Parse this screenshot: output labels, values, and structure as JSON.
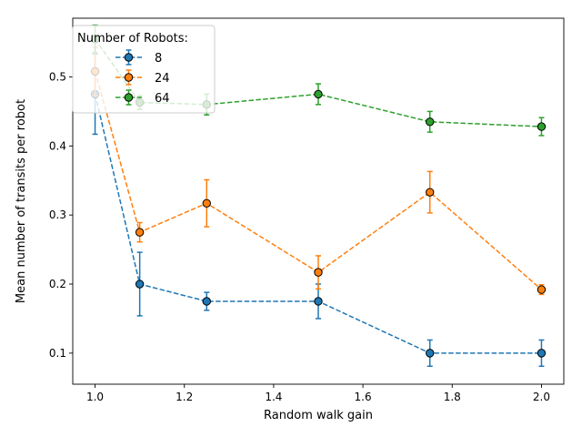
{
  "chart_data": {
    "type": "line",
    "xlabel": "Random walk gain",
    "ylabel": "Mean number of transits per robot",
    "xlim": [
      0.95,
      2.05
    ],
    "ylim": [
      0.055,
      0.585
    ],
    "x_ticks": [
      1.0,
      1.2,
      1.4,
      1.6,
      1.8,
      2.0
    ],
    "x_tick_labels": [
      "1.0",
      "1.2",
      "1.4",
      "1.6",
      "1.8",
      "2.0"
    ],
    "y_ticks": [
      0.1,
      0.2,
      0.3,
      0.4,
      0.5
    ],
    "y_tick_labels": [
      "0.1",
      "0.2",
      "0.3",
      "0.4",
      "0.5"
    ],
    "grid": false,
    "legend_title": "Number of Robots:",
    "legend_position": "top-left",
    "x": [
      1.0,
      1.1,
      1.25,
      1.5,
      1.75,
      2.0
    ],
    "series": [
      {
        "name": "8",
        "color": "#1f77b4",
        "values": [
          0.475,
          0.2,
          0.175,
          0.175,
          0.1,
          0.1
        ],
        "errors": [
          0.058,
          0.046,
          0.013,
          0.025,
          0.019,
          0.019
        ]
      },
      {
        "name": "24",
        "color": "#ff7f0e",
        "values": [
          0.508,
          0.275,
          0.317,
          0.217,
          0.333,
          0.192
        ],
        "errors": [
          0.035,
          0.014,
          0.034,
          0.024,
          0.03,
          0.007
        ]
      },
      {
        "name": "64",
        "color": "#2ca02c",
        "values": [
          0.555,
          0.463,
          0.46,
          0.475,
          0.435,
          0.428
        ],
        "errors": [
          0.02,
          0.01,
          0.015,
          0.015,
          0.015,
          0.013
        ]
      }
    ]
  }
}
